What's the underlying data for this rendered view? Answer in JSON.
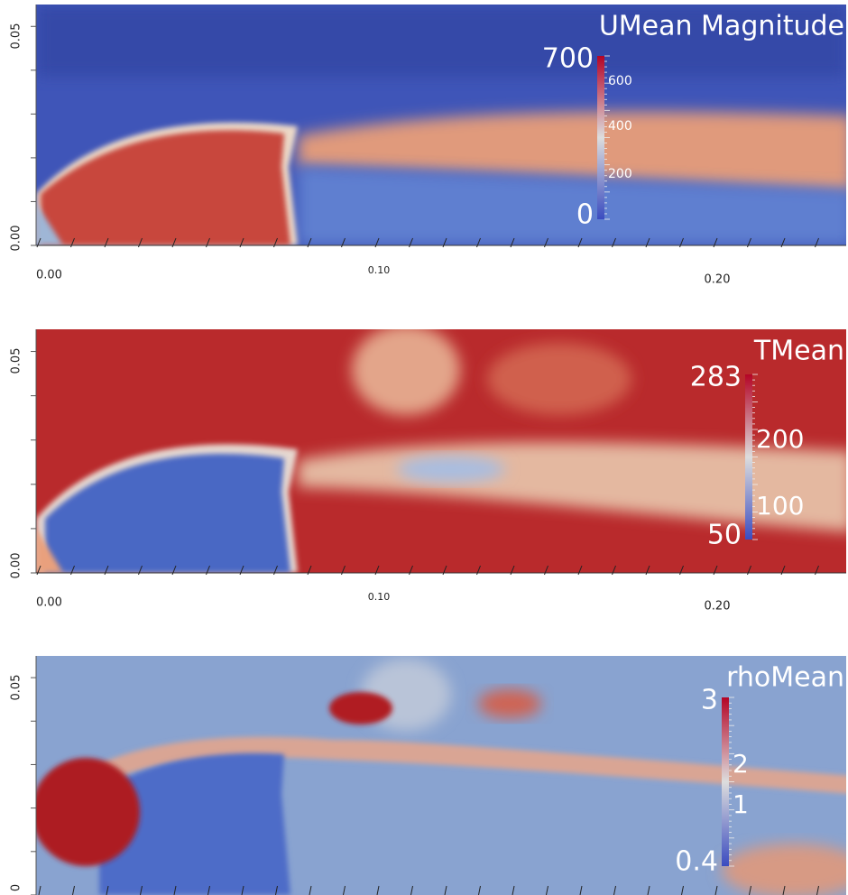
{
  "panels": [
    {
      "title": "UMean Magnitude",
      "colorbar": {
        "max": "700",
        "min": "0",
        "ticks": [
          "600",
          "400",
          "200"
        ]
      },
      "y_axis": [
        "0.05",
        "0.00"
      ],
      "x_axis": [
        "0.00",
        "0.10",
        "0.20"
      ]
    },
    {
      "title": "TMean",
      "colorbar": {
        "max": "283",
        "min": "50",
        "ticks": [
          "200",
          "100"
        ]
      },
      "y_axis": [
        "0.05",
        "0.00"
      ],
      "x_axis": [
        "0.00",
        "0.10",
        "0.20"
      ]
    },
    {
      "title": "rhoMean",
      "colorbar": {
        "max": "3",
        "min": "0.4",
        "ticks": [
          "2",
          "1"
        ]
      },
      "y_axis": [
        "0.05",
        "0"
      ]
    }
  ]
}
